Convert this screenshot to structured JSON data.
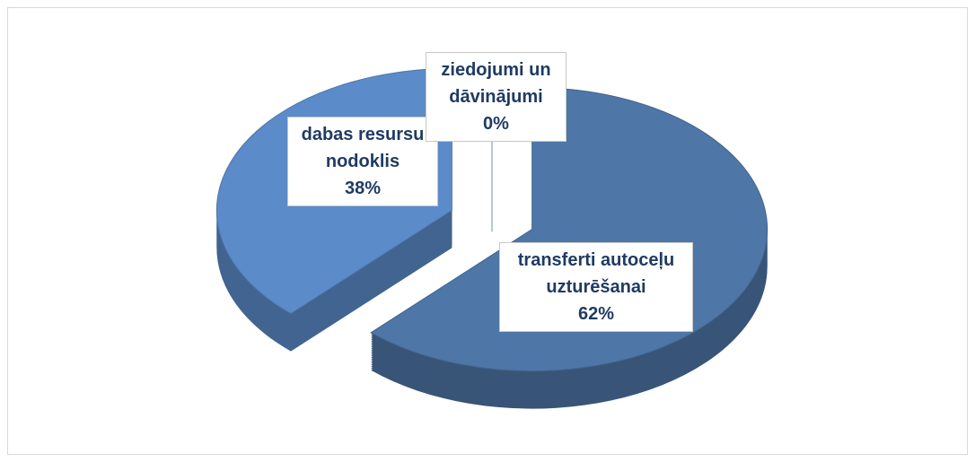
{
  "chart_data": {
    "type": "pie3d",
    "categories": [
      "transferti autoceļu uzturēšanai",
      "dabas resursu nodoklis",
      "ziedojumi un dāvinājumi"
    ],
    "values": [
      62,
      38,
      0
    ],
    "value_labels": [
      "62%",
      "38%",
      "0%"
    ],
    "colors": [
      "#4e76a6",
      "#5b8bc8",
      "#6a98cf"
    ]
  }
}
